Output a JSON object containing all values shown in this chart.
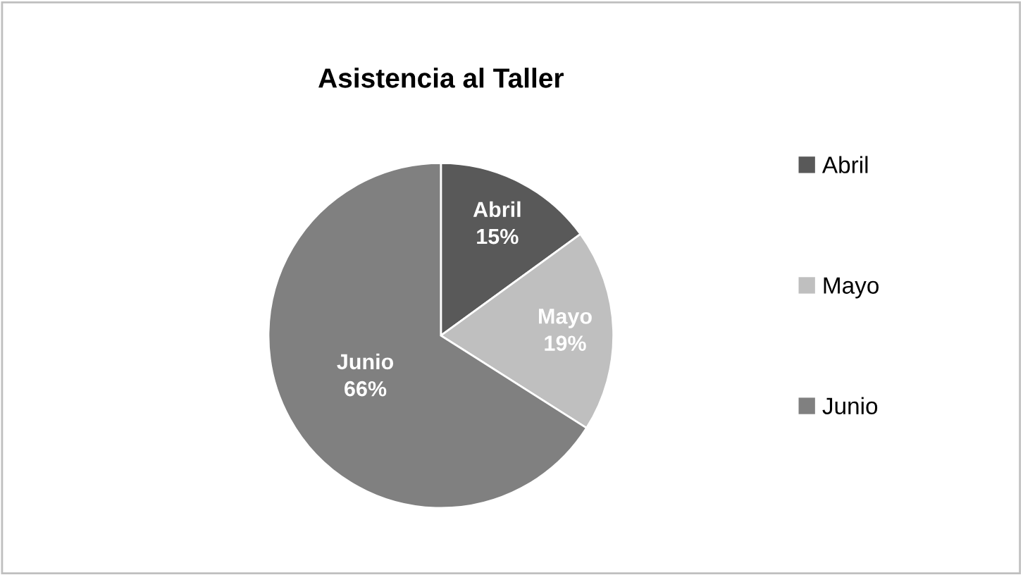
{
  "chart_data": {
    "type": "pie",
    "title": "Asistencia al Taller",
    "categories": [
      "Abril",
      "Mayo",
      "Junio"
    ],
    "values": [
      15,
      19,
      66
    ],
    "colors": [
      "#595959",
      "#bfbfbf",
      "#808080"
    ],
    "value_labels": [
      "15%",
      "19%",
      "66%"
    ],
    "legend": "right"
  }
}
